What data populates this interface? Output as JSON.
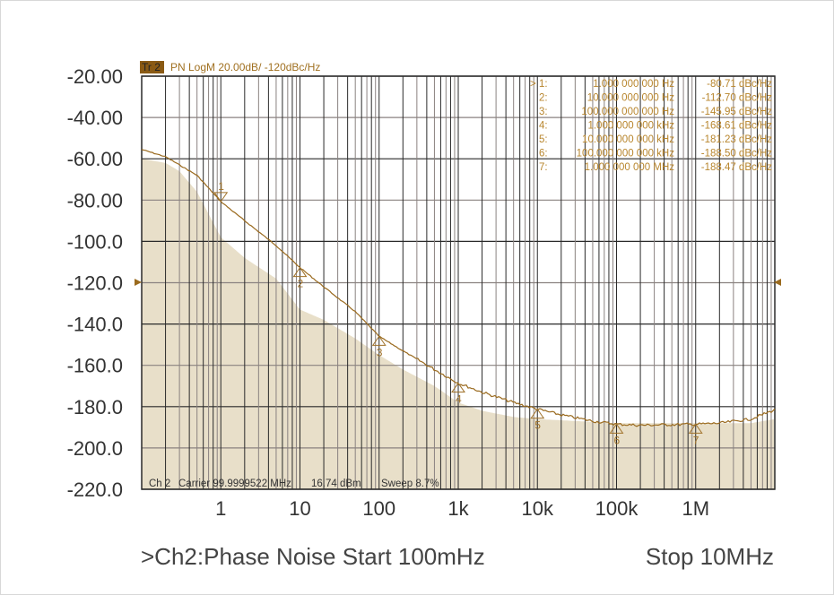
{
  "header": {
    "trace_badge": "Tr 2",
    "trace_info": "PN LogM 20.00dB/  -120dBc/Hz"
  },
  "status": {
    "channel": "Ch 2",
    "carrier": "Carrier 99.9999522 MHz",
    "power": "16.74 dBm",
    "sweep": "Sweep 8.7%"
  },
  "footer": {
    "left": ">Ch2:Phase Noise Start  100mHz",
    "right": "Stop 10MHz"
  },
  "colors": {
    "trace": "#9a6a1e",
    "fill": "#e8dfc9",
    "marker": "#a0722a",
    "text_marker": "#b8862e",
    "badge": "#8a5a14",
    "grid_dark": "#2a2a2a",
    "grid_light": "#8a8280"
  },
  "markers": [
    {
      "label": "1:",
      "freq": "1.000 000 000 Hz",
      "value": "-80.71 dBc/Hz",
      "active": true
    },
    {
      "label": "2:",
      "freq": "10.000 000 000 Hz",
      "value": "-112.70 dBc/Hz"
    },
    {
      "label": "3:",
      "freq": "100.000 000 000 Hz",
      "value": "-145.95 dBc/Hz"
    },
    {
      "label": "4:",
      "freq": "1.000 000 000 kHz",
      "value": "-168.61 dBc/Hz"
    },
    {
      "label": "5:",
      "freq": "10.000 000 000 kHz",
      "value": "-181.23 dBc/Hz"
    },
    {
      "label": "6:",
      "freq": "100.000 000 000 kHz",
      "value": "-188.50 dBc/Hz"
    },
    {
      "label": "7:",
      "freq": "1.000 000 000 MHz",
      "value": "-188.47 dBc/Hz"
    }
  ],
  "active_marker_symbol": ">",
  "chart_data": {
    "type": "line",
    "x_scale": "log",
    "xlim": [
      0.1,
      10000000
    ],
    "ylim": [
      -220,
      -20
    ],
    "grid": true,
    "yticks": [
      "-20.00",
      "-40.00",
      "-60.00",
      "-80.00",
      "-100.0",
      "-120.0",
      "-140.0",
      "-160.0",
      "-180.0",
      "-200.0",
      "-220.0"
    ],
    "ytick_values": [
      -20,
      -40,
      -60,
      -80,
      -100,
      -120,
      -140,
      -160,
      -180,
      -200,
      -220
    ],
    "xticks": [
      "1",
      "10",
      "100",
      "1k",
      "10k",
      "100k",
      "1M"
    ],
    "xtick_values": [
      1,
      10,
      100,
      1000,
      10000,
      100000,
      1000000
    ],
    "reference_level": -120,
    "series": [
      {
        "kind": "trace",
        "x": [
          0.1,
          0.2,
          0.5,
          1,
          2,
          5,
          10,
          20,
          50,
          100,
          200,
          500,
          1000,
          2000,
          5000,
          10000,
          20000,
          50000,
          100000,
          200000,
          500000,
          1000000,
          2000000,
          5000000,
          10000000
        ],
        "y": [
          -55.5,
          -59,
          -68,
          -80.7,
          -90,
          -102,
          -112.7,
          -122,
          -134,
          -146,
          -153,
          -162,
          -168.6,
          -173,
          -178,
          -181.2,
          -184,
          -187,
          -188.5,
          -189,
          -188.7,
          -188.5,
          -188,
          -186,
          -181.5
        ]
      },
      {
        "kind": "fill",
        "x": [
          0.1,
          0.2,
          0.3,
          0.5,
          1,
          2,
          5,
          10,
          20,
          50,
          100,
          200,
          500,
          1000,
          2000,
          5000,
          10000,
          100000,
          1000000,
          5000000,
          10000000
        ],
        "y": [
          -60,
          -62,
          -66,
          -76,
          -98,
          -108,
          -118,
          -133,
          -138,
          -147,
          -155,
          -162,
          -170,
          -178,
          -182,
          -185,
          -186,
          -188,
          -188,
          -188,
          -186
        ]
      }
    ],
    "marker_points": [
      {
        "n": "1",
        "x": 1,
        "y": -80.71
      },
      {
        "n": "2",
        "x": 10,
        "y": -112.7
      },
      {
        "n": "3",
        "x": 100,
        "y": -145.95
      },
      {
        "n": "4",
        "x": 1000,
        "y": -168.61
      },
      {
        "n": "5",
        "x": 10000,
        "y": -181.23
      },
      {
        "n": "6",
        "x": 100000,
        "y": -188.5
      },
      {
        "n": "7",
        "x": 1000000,
        "y": -188.47
      }
    ]
  }
}
